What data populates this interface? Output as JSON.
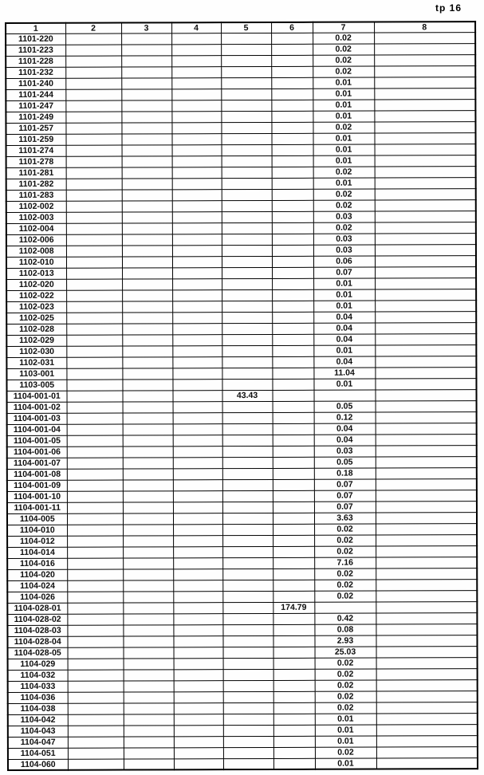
{
  "page": {
    "label": "tp 16"
  },
  "table": {
    "headers": [
      "1",
      "2",
      "3",
      "4",
      "5",
      "6",
      "7",
      "8"
    ],
    "rows": [
      [
        "1101-220",
        "",
        "",
        "",
        "",
        "",
        "0.02",
        ""
      ],
      [
        "1101-223",
        "",
        "",
        "",
        "",
        "",
        "0.02",
        ""
      ],
      [
        "1101-228",
        "",
        "",
        "",
        "",
        "",
        "0.02",
        ""
      ],
      [
        "1101-232",
        "",
        "",
        "",
        "",
        "",
        "0.02",
        ""
      ],
      [
        "1101-240",
        "",
        "",
        "",
        "",
        "",
        "0.01",
        ""
      ],
      [
        "1101-244",
        "",
        "",
        "",
        "",
        "",
        "0.01",
        ""
      ],
      [
        "1101-247",
        "",
        "",
        "",
        "",
        "",
        "0.01",
        ""
      ],
      [
        "1101-249",
        "",
        "",
        "",
        "",
        "",
        "0.01",
        ""
      ],
      [
        "1101-257",
        "",
        "",
        "",
        "",
        "",
        "0.02",
        ""
      ],
      [
        "1101-259",
        "",
        "",
        "",
        "",
        "",
        "0.01",
        ""
      ],
      [
        "1101-274",
        "",
        "",
        "",
        "",
        "",
        "0.01",
        ""
      ],
      [
        "1101-278",
        "",
        "",
        "",
        "",
        "",
        "0.01",
        ""
      ],
      [
        "1101-281",
        "",
        "",
        "",
        "",
        "",
        "0.02",
        ""
      ],
      [
        "1101-282",
        "",
        "",
        "",
        "",
        "",
        "0.01",
        ""
      ],
      [
        "1101-283",
        "",
        "",
        "",
        "",
        "",
        "0.02",
        ""
      ],
      [
        "1102-002",
        "",
        "",
        "",
        "",
        "",
        "0.02",
        ""
      ],
      [
        "1102-003",
        "",
        "",
        "",
        "",
        "",
        "0.03",
        ""
      ],
      [
        "1102-004",
        "",
        "",
        "",
        "",
        "",
        "0.02",
        ""
      ],
      [
        "1102-006",
        "",
        "",
        "",
        "",
        "",
        "0.03",
        ""
      ],
      [
        "1102-008",
        "",
        "",
        "",
        "",
        "",
        "0.03",
        ""
      ],
      [
        "1102-010",
        "",
        "",
        "",
        "",
        "",
        "0.06",
        ""
      ],
      [
        "1102-013",
        "",
        "",
        "",
        "",
        "",
        "0.07",
        ""
      ],
      [
        "1102-020",
        "",
        "",
        "",
        "",
        "",
        "0.01",
        ""
      ],
      [
        "1102-022",
        "",
        "",
        "",
        "",
        "",
        "0.01",
        ""
      ],
      [
        "1102-023",
        "",
        "",
        "",
        "",
        "",
        "0.01",
        ""
      ],
      [
        "1102-025",
        "",
        "",
        "",
        "",
        "",
        "0.04",
        ""
      ],
      [
        "1102-028",
        "",
        "",
        "",
        "",
        "",
        "0.04",
        ""
      ],
      [
        "1102-029",
        "",
        "",
        "",
        "",
        "",
        "0.04",
        ""
      ],
      [
        "1102-030",
        "",
        "",
        "",
        "",
        "",
        "0.01",
        ""
      ],
      [
        "1102-031",
        "",
        "",
        "",
        "",
        "",
        "0.04",
        ""
      ],
      [
        "1103-001",
        "",
        "",
        "",
        "",
        "",
        "11.04",
        ""
      ],
      [
        "1103-005",
        "",
        "",
        "",
        "",
        "",
        "0.01",
        ""
      ],
      [
        "1104-001-01",
        "",
        "",
        "",
        "43.43",
        "",
        "",
        ""
      ],
      [
        "1104-001-02",
        "",
        "",
        "",
        "",
        "",
        "0.05",
        ""
      ],
      [
        "1104-001-03",
        "",
        "",
        "",
        "",
        "",
        "0.12",
        ""
      ],
      [
        "1104-001-04",
        "",
        "",
        "",
        "",
        "",
        "0.04",
        ""
      ],
      [
        "1104-001-05",
        "",
        "",
        "",
        "",
        "",
        "0.04",
        ""
      ],
      [
        "1104-001-06",
        "",
        "",
        "",
        "",
        "",
        "0.03",
        ""
      ],
      [
        "1104-001-07",
        "",
        "",
        "",
        "",
        "",
        "0.05",
        ""
      ],
      [
        "1104-001-08",
        "",
        "",
        "",
        "",
        "",
        "0.18",
        ""
      ],
      [
        "1104-001-09",
        "",
        "",
        "",
        "",
        "",
        "0.07",
        ""
      ],
      [
        "1104-001-10",
        "",
        "",
        "",
        "",
        "",
        "0.07",
        ""
      ],
      [
        "1104-001-11",
        "",
        "",
        "",
        "",
        "",
        "0.07",
        ""
      ],
      [
        "1104-005",
        "",
        "",
        "",
        "",
        "",
        "3.63",
        ""
      ],
      [
        "1104-010",
        "",
        "",
        "",
        "",
        "",
        "0.02",
        ""
      ],
      [
        "1104-012",
        "",
        "",
        "",
        "",
        "",
        "0.02",
        ""
      ],
      [
        "1104-014",
        "",
        "",
        "",
        "",
        "",
        "0.02",
        ""
      ],
      [
        "1104-016",
        "",
        "",
        "",
        "",
        "",
        "7.16",
        ""
      ],
      [
        "1104-020",
        "",
        "",
        "",
        "",
        "",
        "0.02",
        ""
      ],
      [
        "1104-024",
        "",
        "",
        "",
        "",
        "",
        "0.02",
        ""
      ],
      [
        "1104-026",
        "",
        "",
        "",
        "",
        "",
        "0.02",
        ""
      ],
      [
        "1104-028-01",
        "",
        "",
        "",
        "",
        "174.79",
        "",
        ""
      ],
      [
        "1104-028-02",
        "",
        "",
        "",
        "",
        "",
        "0.42",
        ""
      ],
      [
        "1104-028-03",
        "",
        "",
        "",
        "",
        "",
        "0.08",
        ""
      ],
      [
        "1104-028-04",
        "",
        "",
        "",
        "",
        "",
        "2.93",
        ""
      ],
      [
        "1104-028-05",
        "",
        "",
        "",
        "",
        "",
        "25.03",
        ""
      ],
      [
        "1104-029",
        "",
        "",
        "",
        "",
        "",
        "0.02",
        ""
      ],
      [
        "1104-032",
        "",
        "",
        "",
        "",
        "",
        "0.02",
        ""
      ],
      [
        "1104-033",
        "",
        "",
        "",
        "",
        "",
        "0.02",
        ""
      ],
      [
        "1104-036",
        "",
        "",
        "",
        "",
        "",
        "0.02",
        ""
      ],
      [
        "1104-038",
        "",
        "",
        "",
        "",
        "",
        "0.02",
        ""
      ],
      [
        "1104-042",
        "",
        "",
        "",
        "",
        "",
        "0.01",
        ""
      ],
      [
        "1104-043",
        "",
        "",
        "",
        "",
        "",
        "0.01",
        ""
      ],
      [
        "1104-047",
        "",
        "",
        "",
        "",
        "",
        "0.01",
        ""
      ],
      [
        "1104-051",
        "",
        "",
        "",
        "",
        "",
        "0.02",
        ""
      ],
      [
        "1104-060",
        "",
        "",
        "",
        "",
        "",
        "0.01",
        ""
      ]
    ]
  }
}
